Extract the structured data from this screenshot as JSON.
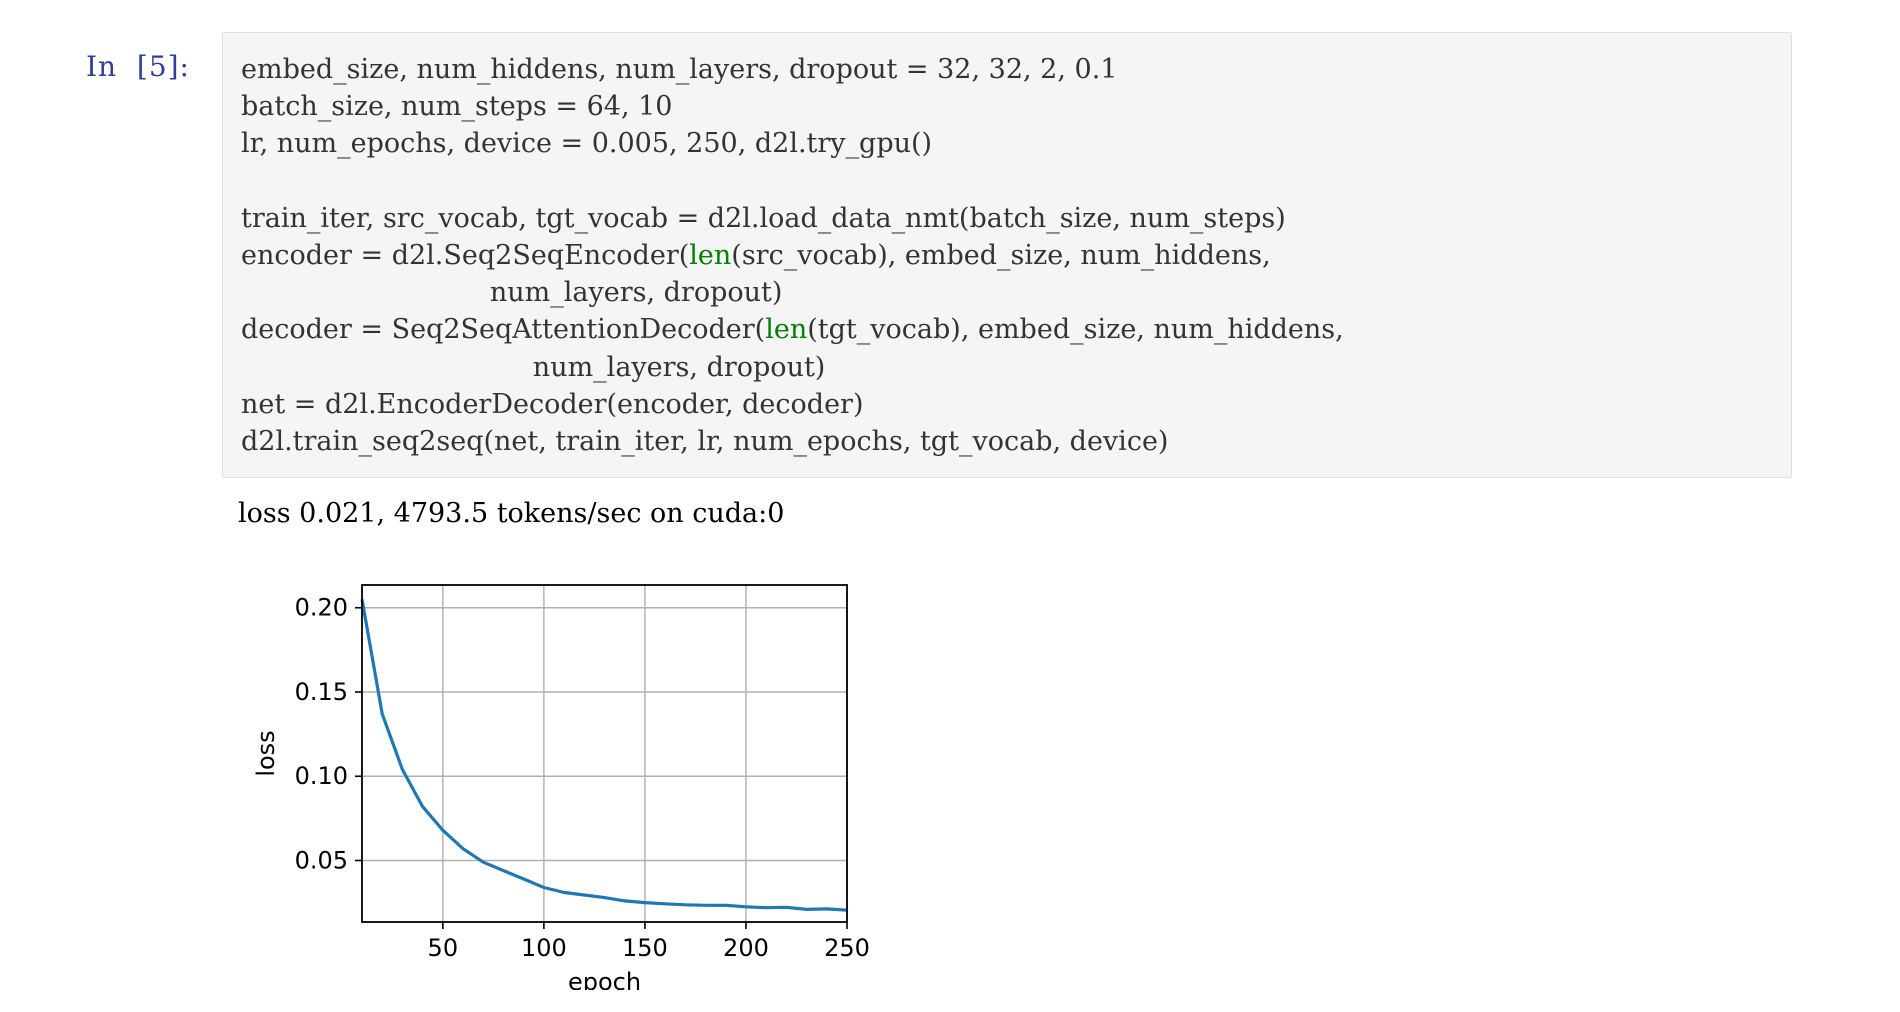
{
  "cell": {
    "prompt": "In  [5]:",
    "code_lines": [
      [
        "embed_size, num_hiddens, num_layers, dropout = 32, 32, 2, 0.1"
      ],
      [
        "batch_size, num_steps = 64, 10"
      ],
      [
        "lr, num_epochs, device = 0.005, 250, d2l.try_gpu()"
      ],
      [
        ""
      ],
      [
        "train_iter, src_vocab, tgt_vocab = d2l.load_data_nmt(batch_size, num_steps)"
      ],
      [
        "encoder = d2l.Seq2SeqEncoder(",
        "len",
        "(src_vocab), embed_size, num_hiddens,"
      ],
      [
        "                             num_layers, dropout)"
      ],
      [
        "decoder = Seq2SeqAttentionDecoder(",
        "len",
        "(tgt_vocab), embed_size, num_hiddens,"
      ],
      [
        "                                  num_layers, dropout)"
      ],
      [
        "net = d2l.EncoderDecoder(encoder, decoder)"
      ],
      [
        "d2l.train_seq2seq(net, train_iter, lr, num_epochs, tgt_vocab, device)"
      ]
    ]
  },
  "output": {
    "text": "loss 0.021, 4793.5 tokens/sec on cuda:0"
  },
  "colors": {
    "prompt": "#303f9f",
    "builtin": "#008000",
    "line": "#1f77b4",
    "grid": "#b0b0b0"
  },
  "chart_data": {
    "type": "line",
    "xlabel": "epoch",
    "ylabel": "loss",
    "xlim": [
      10,
      250
    ],
    "ylim": [
      0.0135,
      0.2135
    ],
    "xticks": [
      50,
      100,
      150,
      200,
      250
    ],
    "xtick_labels": [
      "50",
      "100",
      "150",
      "200",
      "250"
    ],
    "yticks": [
      0.05,
      0.1,
      0.15,
      0.2
    ],
    "ytick_labels": [
      "0.05",
      "0.10",
      "0.15",
      "0.20"
    ],
    "grid": true,
    "series": [
      {
        "x": [
          10,
          20,
          30,
          40,
          50,
          60,
          70,
          80,
          90,
          100,
          110,
          120,
          130,
          140,
          150,
          160,
          170,
          180,
          190,
          200,
          210,
          220,
          230,
          240,
          250
        ],
        "y": [
          0.205,
          0.137,
          0.104,
          0.082,
          0.068,
          0.057,
          0.049,
          0.044,
          0.039,
          0.034,
          0.031,
          0.0295,
          0.028,
          0.026,
          0.025,
          0.0243,
          0.0237,
          0.0234,
          0.0234,
          0.0225,
          0.022,
          0.0222,
          0.021,
          0.0213,
          0.0205
        ]
      }
    ]
  }
}
